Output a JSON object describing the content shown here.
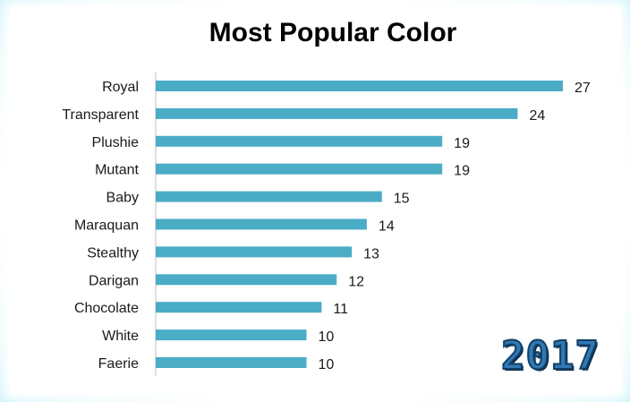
{
  "chart_data": {
    "type": "bar",
    "orientation": "horizontal",
    "title": "Most Popular Color",
    "categories": [
      "Royal",
      "Transparent",
      "Plushie",
      "Mutant",
      "Baby",
      "Maraquan",
      "Stealthy",
      "Darigan",
      "Chocolate",
      "White",
      "Faerie"
    ],
    "values": [
      27,
      24,
      19,
      19,
      15,
      14,
      13,
      12,
      11,
      10,
      10
    ],
    "xlim": [
      0,
      27
    ],
    "grid": false,
    "bar_color": "#4bacc6"
  },
  "year_badge": "2017",
  "colors": {
    "bar": "#4bacc6",
    "badge_fill": "#2f79b5",
    "badge_outline": "#143e63"
  }
}
